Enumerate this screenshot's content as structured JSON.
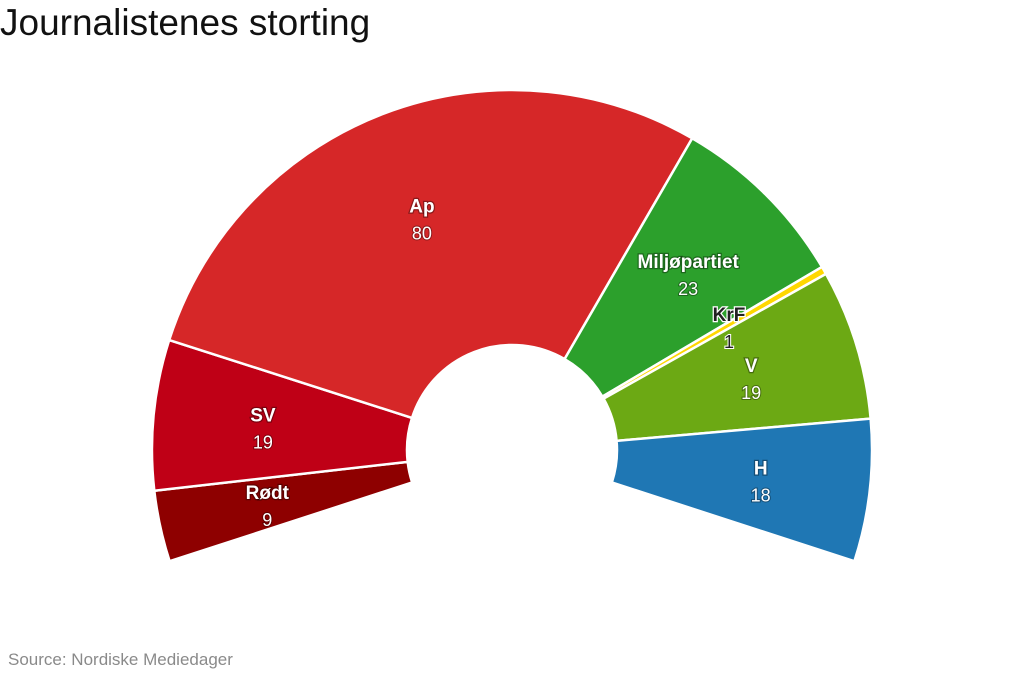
{
  "title": "Journalistenes storting",
  "source": "Source: Nordiske Mediedager",
  "chart_data": {
    "type": "pie",
    "variant": "parliament-semicircle",
    "title": "Journalistenes storting",
    "total": 169,
    "slices": [
      {
        "label": "Rødt",
        "value": 9,
        "color": "#8e0000"
      },
      {
        "label": "SV",
        "value": 19,
        "color": "#bf0016"
      },
      {
        "label": "Ap",
        "value": 80,
        "color": "#d62728"
      },
      {
        "label": "Miljøpartiet",
        "value": 23,
        "color": "#2ca02c"
      },
      {
        "label": "KrF",
        "value": 1,
        "color": "#ffd700"
      },
      {
        "label": "V",
        "value": 19,
        "color": "#6ca914"
      },
      {
        "label": "H",
        "value": 18,
        "color": "#1f77b4"
      }
    ],
    "source": "Source: Nordiske Mediedager"
  }
}
